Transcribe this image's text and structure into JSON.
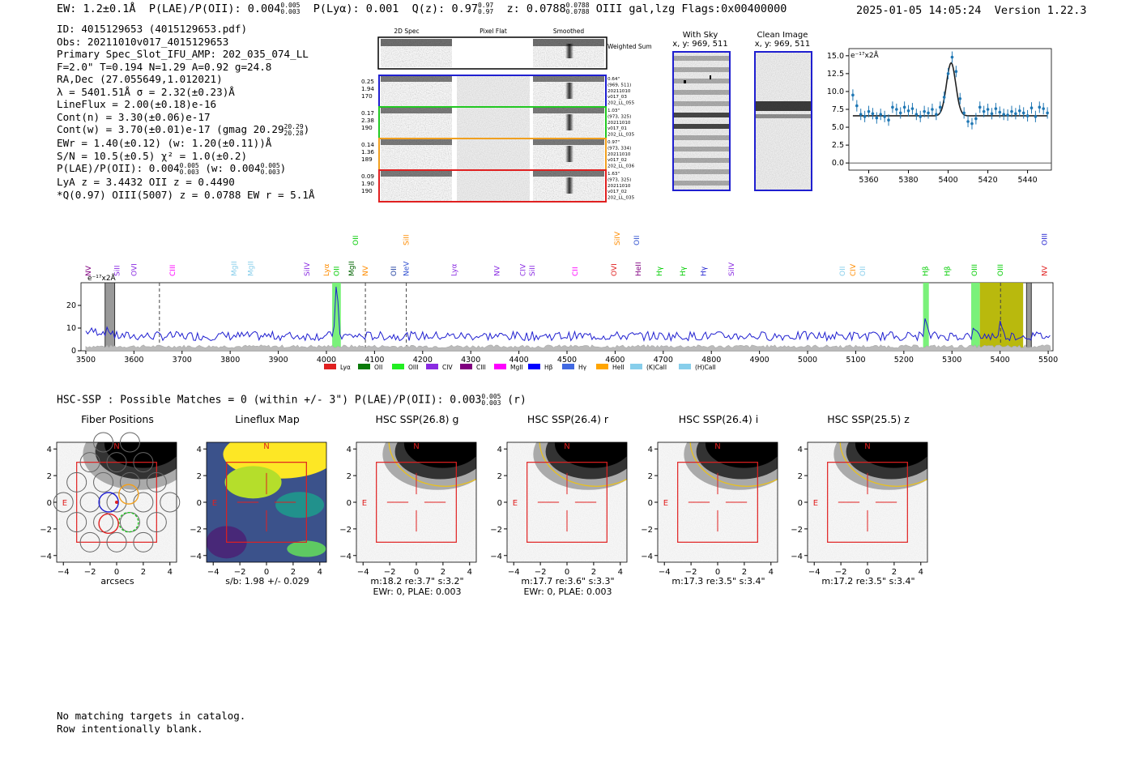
{
  "header": {
    "ew": "EW: 1.2±0.1Å",
    "plae_label": "P(LAE)/P(OII): 0.004",
    "plae_hi": "0.005",
    "plae_lo": "0.003",
    "plya": "P(Lyα): 0.001",
    "qz_label": "Q(z): 0.97",
    "qz_hi": "0.97",
    "qz_lo": "0.97",
    "z_label": "z: 0.0788",
    "z_hi": "0.0788",
    "z_lo": "0.0788",
    "z_rest": "OIII  gal,lzg  Flags:0x00400000",
    "timestamp": "2025-01-05 14:05:24",
    "version": "Version 1.22.3"
  },
  "info": {
    "line1": "ID: 4015129653 (4015129653.pdf)",
    "line2": "Obs: 20211010v017_4015129653",
    "line3": "Primary Spec_Slot_IFU_AMP: 202_035_074_LL",
    "line4": "F=2.0\"  T=0.194  N=1.29  A=0.92  g=24.8",
    "line5": "RA,Dec (27.055649,1.012021)",
    "line6": "λ = 5401.51Å  σ = 2.32(±0.23)Å",
    "line7": "LineFlux = 2.00(±0.18)e-16",
    "line8": "Cont(n) = 3.30(±0.06)e-17",
    "line9a": "Cont(w) = 3.70(±0.01)e-17 (gmag 20.29",
    "line9hi": "20.29",
    "line9lo": "20.28",
    "line9b": ")",
    "line10": "EWr = 1.40(±0.12) (w: 1.20(±0.11))Å",
    "line11": "S/N = 10.5(±0.5)  χ² = 1.0(±0.2)",
    "line12a": "P(LAE)/P(OII): 0.004",
    "line12hi": "0.005",
    "line12lo": "0.003",
    "line12b": " (w: 0.004",
    "line12hi2": "0.005",
    "line12lo2": "0.003",
    "line12c": ")",
    "line13": "LyA z = 3.4432  OII z = 0.4490",
    "line14": "*Q(0.97) OIII(5007) z = 0.0788  EW r = 5.1Å"
  },
  "cutouts": {
    "col_2d": "2D Spec",
    "col_flat": "Pixel Flat",
    "col_smooth": "Smoothed",
    "weighted": "Weighted Sum",
    "rows": [
      {
        "v1": "0.25",
        "v2": "1.94",
        "v3": "170",
        "r1": "0.64\"",
        "r2": "(969, 511)",
        "r3": "20211010",
        "r4": "v017_03",
        "r5": "202_LL_055",
        "color": "#1f1fd0"
      },
      {
        "v1": "0.17",
        "v2": "2.38",
        "v3": "190",
        "r1": "1.03\"",
        "r2": "(973, 325)",
        "r3": "20211010",
        "r4": "v017_01",
        "r5": "202_LL_035",
        "color": "#22c822"
      },
      {
        "v1": "0.14",
        "v2": "1.36",
        "v3": "189",
        "r1": "0.97\"",
        "r2": "(973, 334)",
        "r3": "20211010",
        "r4": "v017_02",
        "r5": "202_LL_036",
        "color": "#f0a020"
      },
      {
        "v1": "0.09",
        "v2": "1.90",
        "v3": "190",
        "r1": "1.63\"",
        "r2": "(973, 325)",
        "r3": "20211010",
        "r4": "v017_02",
        "r5": "202_LL_035",
        "color": "#e02020"
      }
    ],
    "with_sky": "With Sky",
    "with_sky_xy": "x, y: 969, 511",
    "clean": "Clean Image",
    "clean_xy": "x, y: 969, 511"
  },
  "chart_data": [
    {
      "type": "line",
      "title": "",
      "ylabel": "e⁻¹⁷x2Å",
      "xlim": [
        5350,
        5452
      ],
      "ylim": [
        -1,
        16
      ],
      "xticks": [
        "5360",
        "5380",
        "5400",
        "5420",
        "5440"
      ],
      "yticks": [
        "0.0",
        "2.5",
        "5.0",
        "7.5",
        "10.0",
        "12.5",
        "15.0"
      ],
      "points_x": [
        5352,
        5354,
        5356,
        5358,
        5360,
        5362,
        5364,
        5366,
        5368,
        5370,
        5372,
        5374,
        5376,
        5378,
        5380,
        5382,
        5384,
        5386,
        5388,
        5390,
        5392,
        5394,
        5396,
        5398,
        5400,
        5402,
        5404,
        5406,
        5408,
        5410,
        5412,
        5414,
        5416,
        5418,
        5420,
        5422,
        5424,
        5426,
        5428,
        5430,
        5432,
        5434,
        5436,
        5438,
        5440,
        5442,
        5444,
        5446,
        5448,
        5450
      ],
      "points_y": [
        9.5,
        8.0,
        6.8,
        6.5,
        7.2,
        6.9,
        6.3,
        6.8,
        6.5,
        6.0,
        7.8,
        7.5,
        7.0,
        7.8,
        7.3,
        7.6,
        6.8,
        6.5,
        7.2,
        7.0,
        7.5,
        6.8,
        7.8,
        9.2,
        12.5,
        14.8,
        12.8,
        9.0,
        7.0,
        5.8,
        5.5,
        6.2,
        7.8,
        7.2,
        7.5,
        6.9,
        7.6,
        7.1,
        6.8,
        6.7,
        7.2,
        6.9,
        7.3,
        7.0,
        6.6,
        7.7,
        6.5,
        7.8,
        7.6,
        7.0
      ],
      "model_continuum": 6.6,
      "model_peak": 7.4,
      "model_center": 5401.5,
      "model_sigma": 2.32
    },
    {
      "type": "line",
      "ylabel": "e⁻¹⁷x2Å",
      "xlim": [
        3490,
        5510
      ],
      "ylim": [
        0,
        30
      ],
      "xticks": [
        "3500",
        "3600",
        "3700",
        "3800",
        "3900",
        "4000",
        "4100",
        "4200",
        "4300",
        "4400",
        "4500",
        "4600",
        "4700",
        "4800",
        "4900",
        "5000",
        "5100",
        "5200",
        "5300",
        "5400",
        "5500"
      ],
      "yticks": [
        "0",
        "10",
        "20"
      ],
      "continuum": 6.5,
      "emission_peaks": [
        {
          "x": 4021,
          "h": 22
        },
        {
          "x": 5245,
          "h": 7
        },
        {
          "x": 5347,
          "h": 3
        },
        {
          "x": 5401,
          "h": 6
        }
      ],
      "line_labels": [
        {
          "t": "NV",
          "x": 3505,
          "c": "#800080",
          "row": 1
        },
        {
          "t": "SiII",
          "x": 3565,
          "c": "#8a2be2",
          "row": 1
        },
        {
          "t": "OVI",
          "x": 3600,
          "c": "#8a2be2",
          "row": 1
        },
        {
          "t": "CIII",
          "x": 3680,
          "c": "#ff00ff",
          "row": 1
        },
        {
          "t": "MgII",
          "x": 3808,
          "c": "#87ceeb",
          "row": 1
        },
        {
          "t": "MgII",
          "x": 3843,
          "c": "#87ceeb",
          "row": 1
        },
        {
          "t": "SiIV",
          "x": 3960,
          "c": "#8a2be2",
          "row": 1
        },
        {
          "t": "Lyα",
          "x": 4000,
          "c": "#ff8c00",
          "row": 1
        },
        {
          "t": "OII",
          "x": 4021,
          "c": "#00cc00",
          "row": 1
        },
        {
          "t": "MgII",
          "x": 4052,
          "c": "#006400",
          "row": 1
        },
        {
          "t": "NV",
          "x": 4081,
          "c": "#ff8c00",
          "row": 1
        },
        {
          "t": "OII",
          "x": 4061,
          "c": "#00cc00",
          "row": 0
        },
        {
          "t": "OII",
          "x": 4140,
          "c": "#1f3fa0",
          "row": 1
        },
        {
          "t": "NeV",
          "x": 4166,
          "c": "#3050d0",
          "row": 1
        },
        {
          "t": "SiII",
          "x": 4166,
          "c": "#ff8c00",
          "row": 0
        },
        {
          "t": "Lyα",
          "x": 4265,
          "c": "#8a2be2",
          "row": 1
        },
        {
          "t": "NV",
          "x": 4354,
          "c": "#8a2be2",
          "row": 1
        },
        {
          "t": "CIV",
          "x": 4408,
          "c": "#8a2be2",
          "row": 1
        },
        {
          "t": "SiII",
          "x": 4428,
          "c": "#8a2be2",
          "row": 1
        },
        {
          "t": "CII",
          "x": 4517,
          "c": "#ff00ff",
          "row": 1
        },
        {
          "t": "OVI",
          "x": 4598,
          "c": "#e02020",
          "row": 1
        },
        {
          "t": "SiIV",
          "x": 4604,
          "c": "#ff8c00",
          "row": 0
        },
        {
          "t": "OII",
          "x": 4645,
          "c": "#3050d0",
          "row": 0
        },
        {
          "t": "HeII",
          "x": 4648,
          "c": "#800080",
          "row": 1
        },
        {
          "t": "Hγ",
          "x": 4692,
          "c": "#00cc00",
          "row": 1
        },
        {
          "t": "Hγ",
          "x": 4741,
          "c": "#00cc00",
          "row": 1
        },
        {
          "t": "Hγ",
          "x": 4784,
          "c": "#1f1fd0",
          "row": 1
        },
        {
          "t": "SiIV",
          "x": 4842,
          "c": "#8a2be2",
          "row": 1
        },
        {
          "t": "OII",
          "x": 5072,
          "c": "#87ceeb",
          "row": 1
        },
        {
          "t": "CIV",
          "x": 5094,
          "c": "#ff8c00",
          "row": 1
        },
        {
          "t": "OII",
          "x": 5114,
          "c": "#87ceeb",
          "row": 1
        },
        {
          "t": "Hβ",
          "x": 5245,
          "c": "#00cc00",
          "row": 1
        },
        {
          "t": "Hβ",
          "x": 5290,
          "c": "#00cc00",
          "row": 1
        },
        {
          "t": "OIII",
          "x": 5347,
          "c": "#00cc00",
          "row": 1
        },
        {
          "t": "OIII",
          "x": 5401,
          "c": "#00cc00",
          "row": 1
        },
        {
          "t": "NV",
          "x": 5492,
          "c": "#e02020",
          "row": 1
        },
        {
          "t": "OIII",
          "x": 5492,
          "c": "#1f1fd0",
          "row": 0
        }
      ],
      "legend": [
        {
          "t": "Lyα",
          "c": "#e02020"
        },
        {
          "t": "OII",
          "c": "#0a7a0a"
        },
        {
          "t": "OIII",
          "c": "#22ee22"
        },
        {
          "t": "CIV",
          "c": "#8a2be2"
        },
        {
          "t": "CIII",
          "c": "#800080"
        },
        {
          "t": "MgII",
          "c": "#ff00ff"
        },
        {
          "t": "Hβ",
          "c": "#0000ff"
        },
        {
          "t": "Hγ",
          "c": "#4169e1"
        },
        {
          "t": "HeII",
          "c": "#ffa500"
        },
        {
          "t": "(K)CaII",
          "c": "#87ceeb"
        },
        {
          "t": "(H)CaII",
          "c": "#87ceeb"
        }
      ]
    }
  ],
  "hsc": {
    "title_a": "HSC-SSP : Possible Matches = 0 (within +/- 3\")  P(LAE)/P(OII): 0.003",
    "title_hi": "0.005",
    "title_lo": "0.003",
    "title_b": " (r)",
    "axis_ticks": [
      "-4",
      "-2",
      "0",
      "2",
      "4"
    ],
    "north": "N",
    "east": "E",
    "panels": [
      {
        "title": "Fiber Positions",
        "cap1": "arcsecs",
        "cap2": ""
      },
      {
        "title": "Lineflux Map",
        "cap1": "s/b: 1.98 +/- 0.029",
        "cap2": ""
      },
      {
        "title": "HSC SSP(26.8) g",
        "cap1": "m:18.2  re:3.7\"  s:3.2\"",
        "cap2": "EWr: 0, PLAE: 0.003"
      },
      {
        "title": "HSC SSP(26.4) r",
        "cap1": "m:17.7  re:3.6\"  s:3.3\"",
        "cap2": "EWr: 0, PLAE: 0.003"
      },
      {
        "title": "HSC SSP(26.4) i",
        "cap1": "m:17.3  re:3.5\"  s:3.4\"",
        "cap2": ""
      },
      {
        "title": "HSC SSP(25.5) z",
        "cap1": "m:17.2  re:3.5\"  s:3.4\"",
        "cap2": ""
      }
    ]
  },
  "footer": {
    "line1": "No matching targets in catalog.",
    "line2": "Row intentionally blank."
  }
}
